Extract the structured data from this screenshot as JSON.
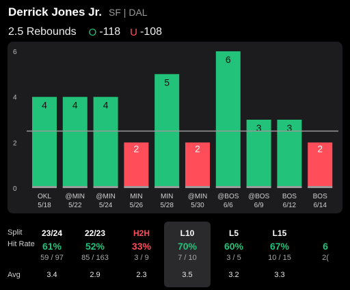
{
  "player": {
    "name": "Derrick Jones Jr.",
    "team_info": "SF | DAL"
  },
  "prop": {
    "label": "2.5 Rebounds",
    "over_symbol": "O",
    "over_odds": "-118",
    "under_symbol": "U",
    "under_odds": "-108"
  },
  "colors": {
    "over": "#22c27a",
    "under": "#ff4d5a",
    "panel": "#1c1c1e"
  },
  "chart_data": {
    "type": "bar",
    "categories": [
      "OKL 5/18",
      "@MIN 5/22",
      "@MIN 5/24",
      "MIN 5/26",
      "MIN 5/28",
      "@MIN 5/30",
      "@BOS 6/6",
      "@BOS 6/9",
      "BOS 6/12",
      "BOS 6/14"
    ],
    "x_top": [
      "OKL",
      "@MIN",
      "@MIN",
      "MIN",
      "MIN",
      "@MIN",
      "@BOS",
      "@BOS",
      "BOS",
      "BOS"
    ],
    "x_bottom": [
      "5/18",
      "5/22",
      "5/24",
      "5/26",
      "5/28",
      "5/30",
      "6/6",
      "6/9",
      "6/12",
      "6/14"
    ],
    "values": [
      4,
      4,
      4,
      2,
      5,
      2,
      6,
      3,
      3,
      2
    ],
    "yticks": [
      0,
      2,
      4,
      6
    ],
    "ylim": [
      0,
      6.5
    ],
    "line_value": 2.5
  },
  "stats": {
    "row_labels": {
      "split": "Split",
      "hit_rate": "Hit Rate",
      "avg": "Avg"
    },
    "columns": [
      {
        "head": "23/24",
        "pct": "61%",
        "frac": "59 / 97",
        "avg": "3.4",
        "hit": true
      },
      {
        "head": "22/23",
        "pct": "52%",
        "frac": "85 / 163",
        "avg": "2.9",
        "hit": true
      },
      {
        "head": "H2H",
        "pct": "33%",
        "frac": "3 / 9",
        "avg": "2.3",
        "hit": false
      },
      {
        "head": "L10",
        "pct": "70%",
        "frac": "7 / 10",
        "avg": "3.5",
        "hit": true
      },
      {
        "head": "L5",
        "pct": "60%",
        "frac": "3 / 5",
        "avg": "3.2",
        "hit": true
      },
      {
        "head": "L15",
        "pct": "67%",
        "frac": "10 / 15",
        "avg": "3.3",
        "hit": true
      },
      {
        "head": "",
        "pct": "6",
        "frac": "2(",
        "avg": "",
        "hit": true
      }
    ]
  }
}
